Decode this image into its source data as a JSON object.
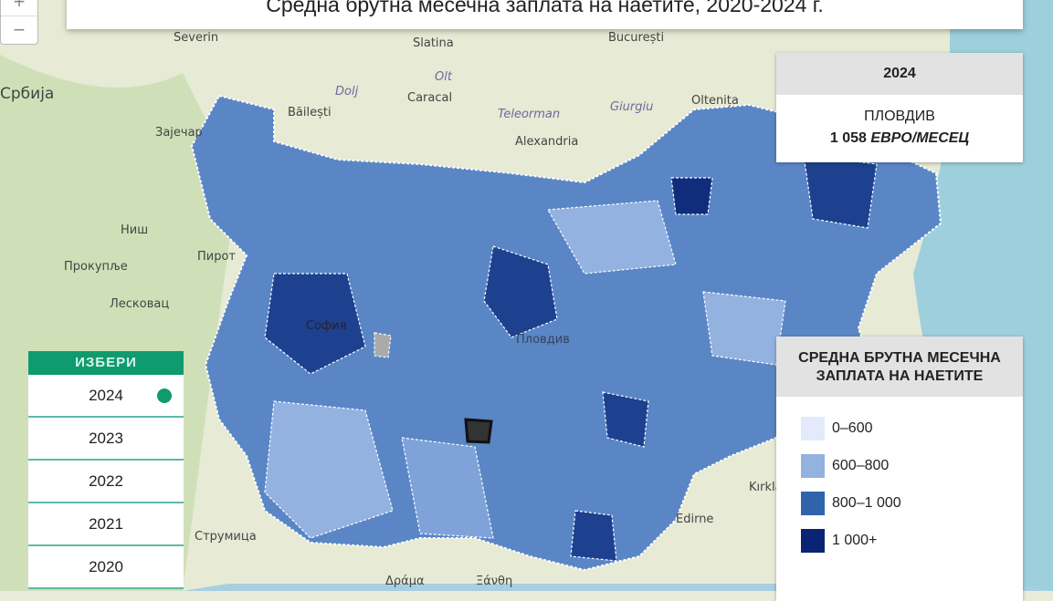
{
  "title": "Средна брутна месечна заплата на наетите, 2020-2024 г.",
  "zoom": {
    "in": "+",
    "out": "−"
  },
  "info": {
    "year": "2024",
    "region": "ПЛОВДИВ",
    "value": "1 058",
    "unit": "ЕВРО/МЕСЕЦ"
  },
  "legend": {
    "title": "СРЕДНА БРУТНА МЕСЕЧНА ЗАПЛАТА НА НАЕТИТЕ",
    "items": [
      {
        "label": "0–600",
        "color": "#e3eafb"
      },
      {
        "label": "600–800",
        "color": "#93b2df"
      },
      {
        "label": "800–1 000",
        "color": "#2f64ad"
      },
      {
        "label": "1 000+",
        "color": "#0a2473"
      }
    ]
  },
  "year_selector": {
    "header": "ИЗБЕРИ",
    "years": [
      "2024",
      "2023",
      "2022",
      "2021",
      "2020"
    ],
    "selected": "2024",
    "accent": "#0f9b6e"
  },
  "places": [
    "Severin",
    "Slatina",
    "București",
    "Olt",
    "Dolj",
    "Caracal",
    "Băilești",
    "Teleorman",
    "Giurgiu",
    "Oltenița",
    "Alexandria",
    "Србија",
    "Зајечар",
    "Ниш",
    "Пирот",
    "Прокупље",
    "Лесковац",
    "Струмица",
    "Edirne",
    "Kırklareli",
    "София",
    "Пловдив",
    "Δράμα",
    "Ξάνθη"
  ]
}
